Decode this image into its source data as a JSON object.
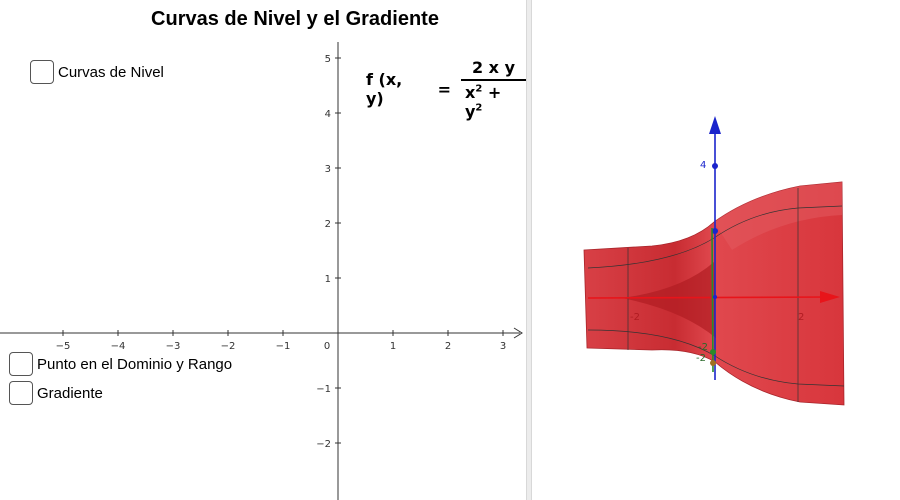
{
  "title": "Curvas de Nivel y el Gradiente",
  "checkboxes": {
    "level_curves": "Curvas de Nivel",
    "domain_range_point": "Punto en el Dominio y Rango",
    "gradient": "Gradiente"
  },
  "formula": {
    "lhs": "f (x, y)",
    "eq": "=",
    "numerator": "2 x y",
    "den_x": "x",
    "den_plus": "+",
    "den_y": "y",
    "den_exp": "2"
  },
  "graph2d": {
    "x_ticks": [
      "−5",
      "−4",
      "−3",
      "−2",
      "−1",
      "0",
      "1",
      "2",
      "3"
    ],
    "y_ticks": [
      "5",
      "4",
      "3",
      "2",
      "1",
      "−1",
      "−2"
    ]
  },
  "graph3d": {
    "z_label": "4",
    "x_label_pos": "2",
    "x_label_neg": "-2",
    "y_label_a": "-2",
    "y_label_b": "-2",
    "colors": {
      "surface": "#d8363c",
      "surface_dark": "#b8262c",
      "x_axis": "#e8141a",
      "z_axis": "#1a24cc",
      "y_axis": "#2a8a2a"
    }
  }
}
